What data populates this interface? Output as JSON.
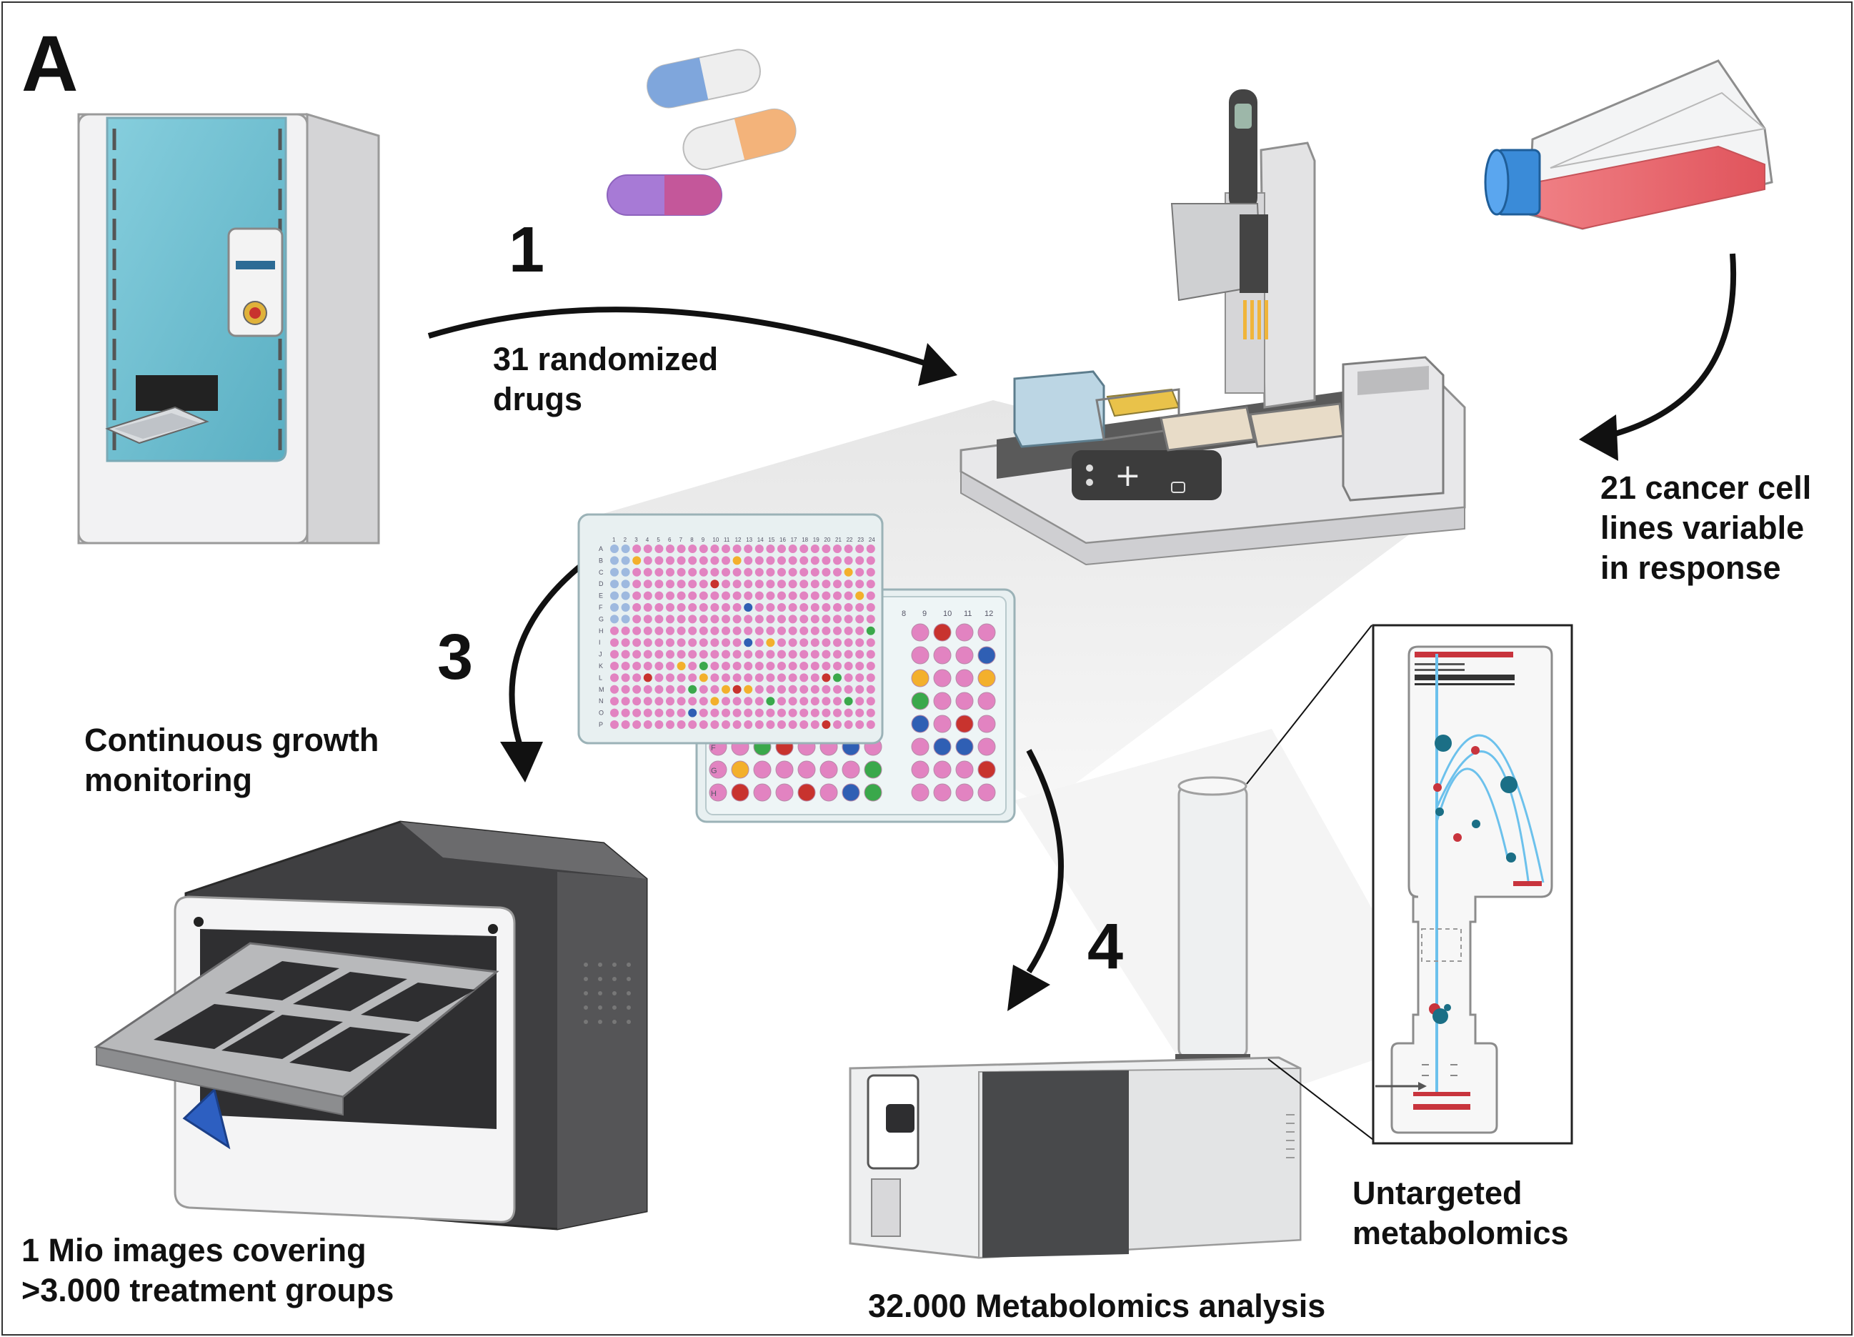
{
  "panel_letter": "A",
  "steps": {
    "step1": "1",
    "step3": "3",
    "step4": "4"
  },
  "labels": {
    "drugs": [
      "31 randomized",
      "drugs"
    ],
    "cells": [
      "21 cancer cell",
      "lines variable",
      "in response"
    ],
    "growth": [
      "Continuous growth",
      "monitoring"
    ],
    "images": [
      "1 Mio images covering",
      ">3.000 treatment groups"
    ],
    "metabolomics": [
      "Untargeted",
      "metabolomics"
    ],
    "analysis": "32.000 Metabolomics analysis"
  },
  "plate384": {
    "columns": [
      "1",
      "2",
      "3",
      "4",
      "5",
      "6",
      "7",
      "8",
      "9",
      "10",
      "11",
      "12",
      "13",
      "14",
      "15",
      "16",
      "17",
      "18",
      "19",
      "20",
      "21",
      "22",
      "23",
      "24"
    ],
    "rows": [
      "A",
      "B",
      "C",
      "D",
      "E",
      "F",
      "G",
      "H",
      "I",
      "J",
      "K",
      "L",
      "M",
      "N",
      "O",
      "P"
    ]
  },
  "plate96": {
    "columns": [
      "8",
      "9",
      "10",
      "11",
      "12"
    ],
    "rows": [
      "F",
      "G",
      "H"
    ]
  },
  "colors": {
    "incubator_window": "#6fbfd0",
    "capsule_blue": "#7fa6dc",
    "capsule_orange": "#f3b37a",
    "capsule_purple": "#a77ad6",
    "capsule_magenta": "#c4579a",
    "flask_medium": "#e8646a",
    "flask_cap": "#2a7fd0",
    "well_pink": "#e283c1",
    "well_red": "#c8332e",
    "well_green": "#3aa84b",
    "well_orange": "#f3b02c",
    "well_blue": "#2f5fb4",
    "ms_beam": "#6cc1ec",
    "ms_red": "#c8343d",
    "ms_teal": "#1b6f86"
  },
  "icons": [
    "incubator-icon",
    "drug-capsules-icon",
    "liquid-handler-icon",
    "cell-culture-flask-icon",
    "well-plate-384-icon",
    "well-plate-96-icon",
    "live-cell-imager-icon",
    "mass-spectrometer-icon",
    "ms-schematic-icon"
  ]
}
